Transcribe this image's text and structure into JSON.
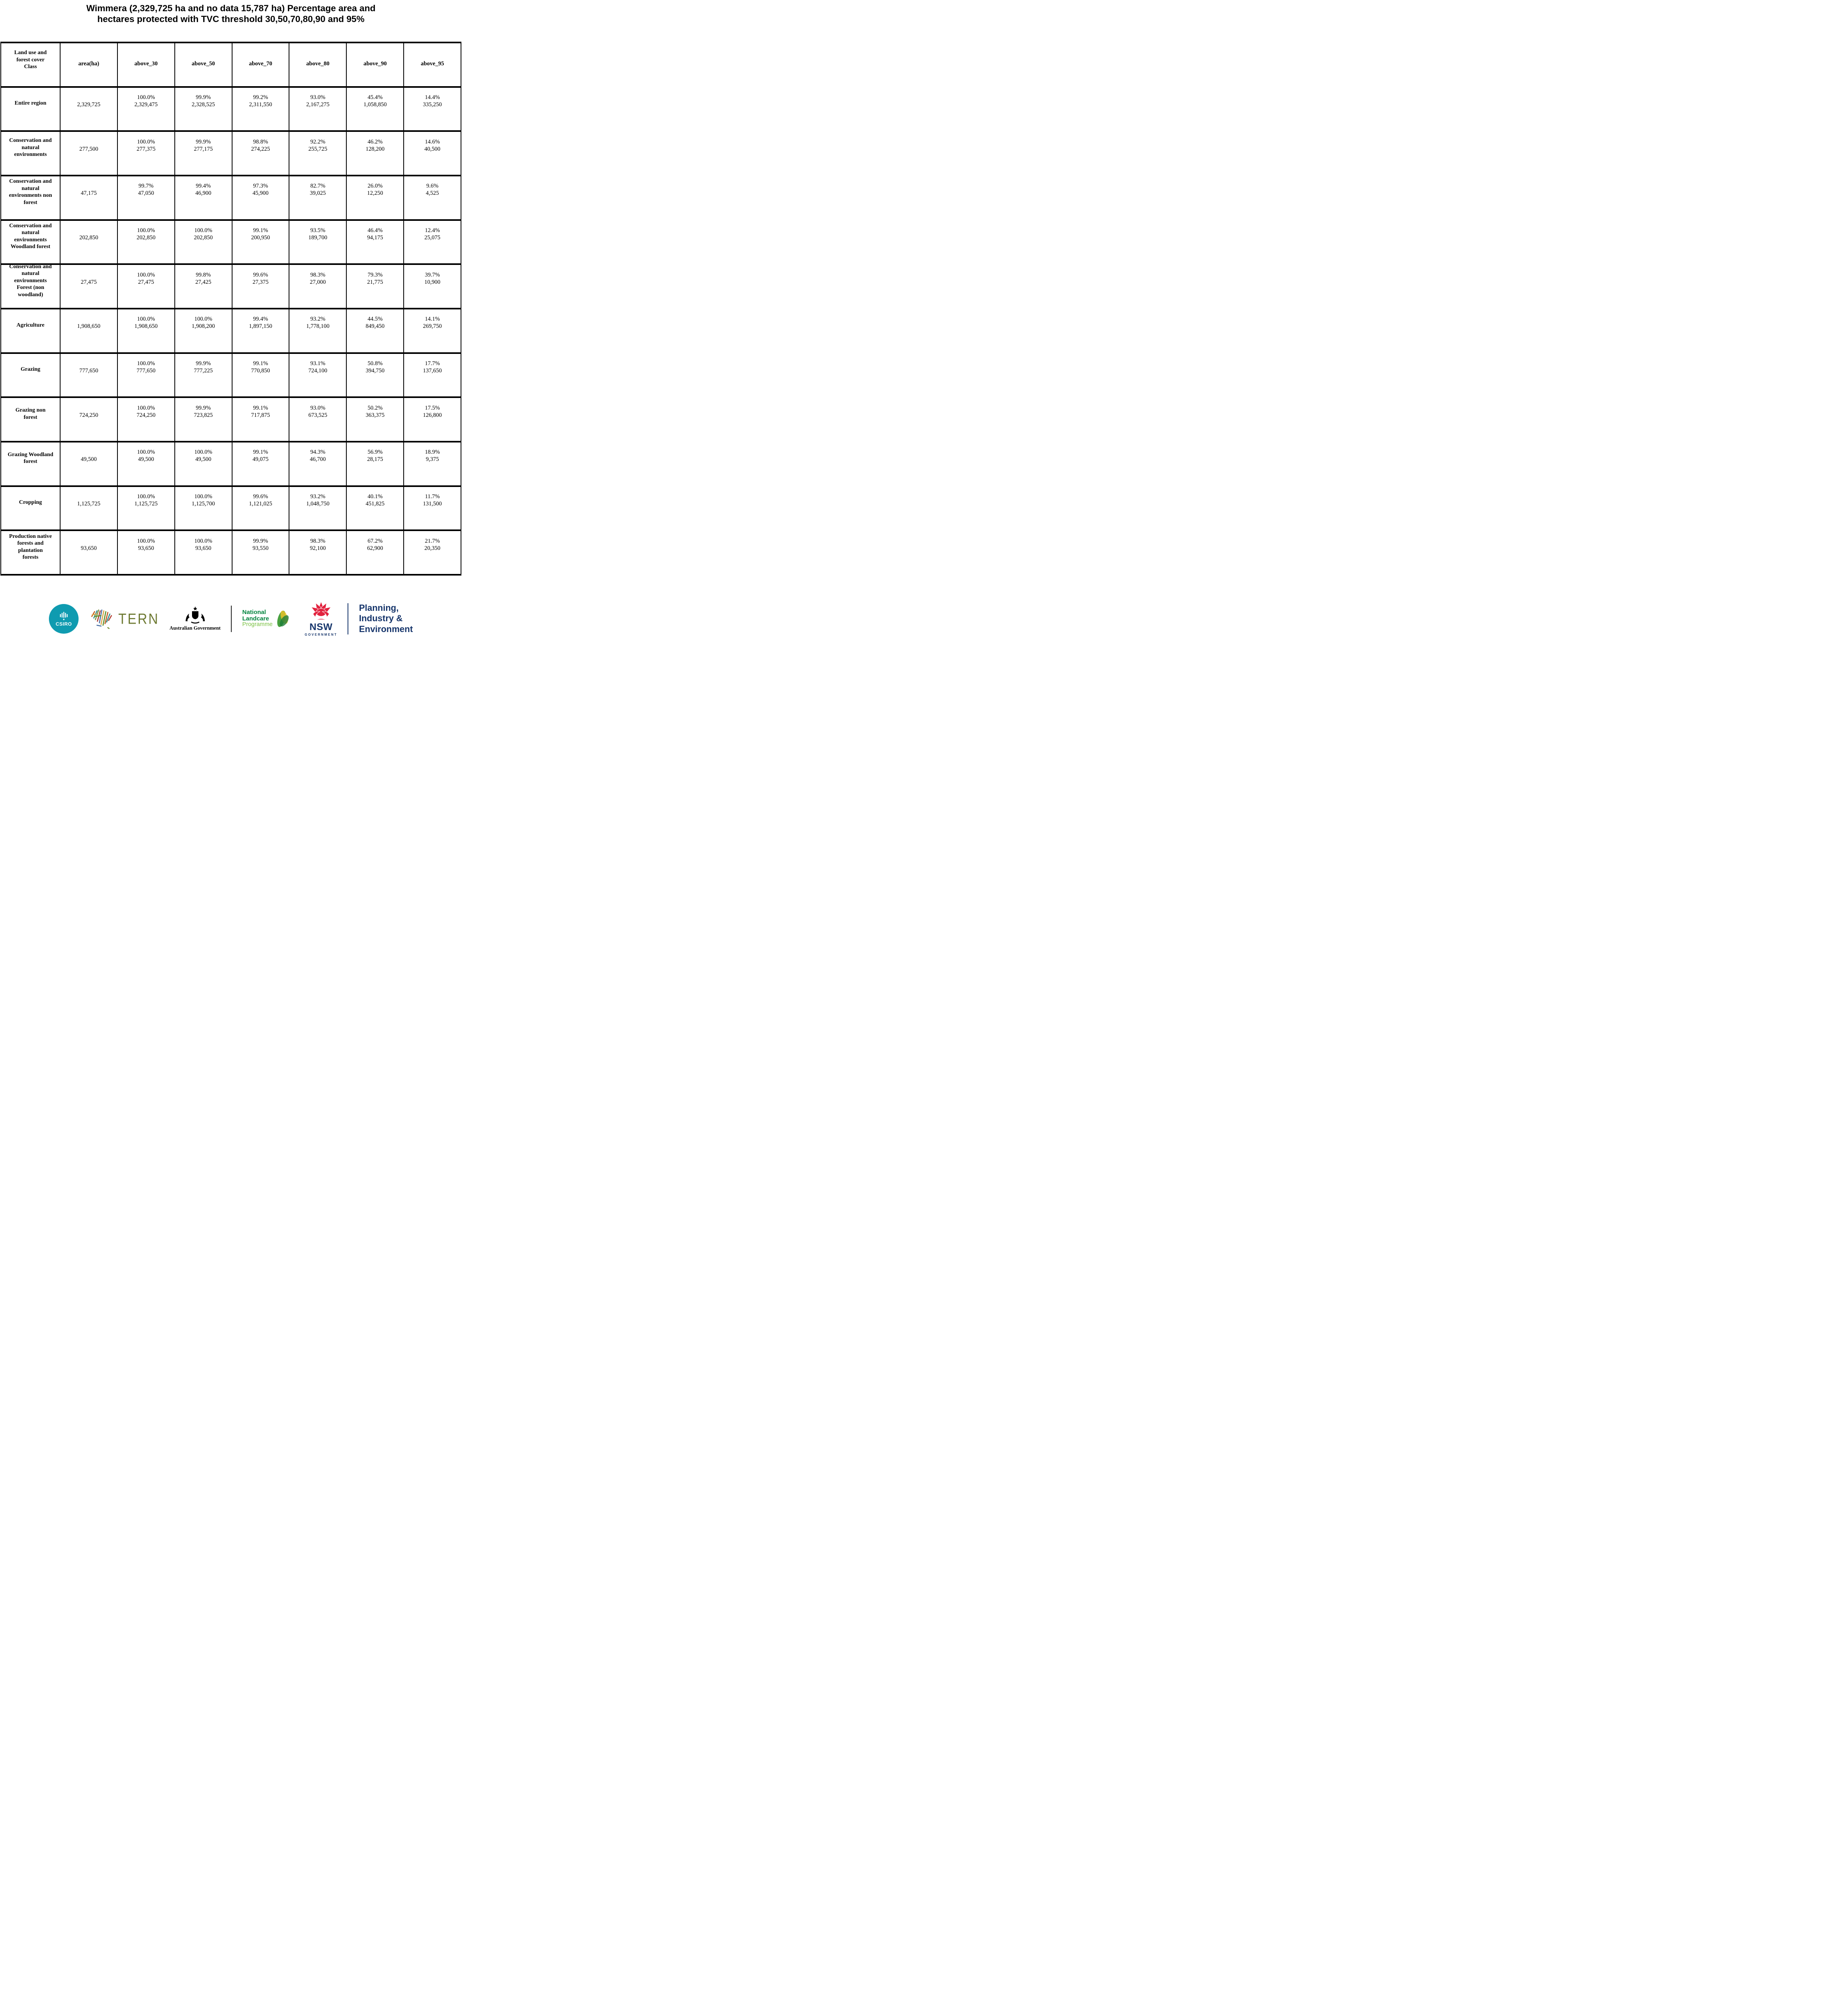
{
  "header": {
    "title_lines": [
      "Wimmera (2,329,725 ha and no data 15,787 ha) Percentage area and",
      "hectares protected with TVC threshold 30,50,70,80,90 and 95%"
    ]
  },
  "chart_data": {
    "type": "table",
    "title": "Wimmera (2,329,725 ha and no data 15,787 ha) Percentage area and hectares protected with TVC threshold 30,50,70,80,90 and 95%",
    "region": "Wimmera",
    "region_area_ha": 2329725,
    "no_data_ha": 15787,
    "tvc_thresholds": [
      30,
      50,
      70,
      80,
      90,
      95
    ],
    "columns": [
      "Land use and forest cover Class",
      "area(ha)",
      "above_30",
      "above_50",
      "above_70",
      "above_80",
      "above_90",
      "above_95"
    ],
    "first_column_lines": [
      "Land use and",
      "forest cover",
      "Class"
    ],
    "rows": [
      {
        "label": "Entire region",
        "label_lines": [
          "Entire region"
        ],
        "area_ha": 2329725,
        "thresholds": [
          [
            100.0,
            2329475
          ],
          [
            99.9,
            2328525
          ],
          [
            99.2,
            2311550
          ],
          [
            93.0,
            2167275
          ],
          [
            45.4,
            1058850
          ],
          [
            14.4,
            335250
          ]
        ]
      },
      {
        "label": "Conservation and natural environments",
        "label_lines": [
          "Conservation and",
          "natural",
          "environments"
        ],
        "area_ha": 277500,
        "thresholds": [
          [
            100.0,
            277375
          ],
          [
            99.9,
            277175
          ],
          [
            98.8,
            274225
          ],
          [
            92.2,
            255725
          ],
          [
            46.2,
            128200
          ],
          [
            14.6,
            40500
          ]
        ]
      },
      {
        "label": "Conservation and natural environments non forest",
        "label_lines": [
          "Conservation and",
          "natural",
          "environments non",
          "forest"
        ],
        "area_ha": 47175,
        "thresholds": [
          [
            99.7,
            47050
          ],
          [
            99.4,
            46900
          ],
          [
            97.3,
            45900
          ],
          [
            82.7,
            39025
          ],
          [
            26.0,
            12250
          ],
          [
            9.6,
            4525
          ]
        ]
      },
      {
        "label": "Conservation and natural environments Woodland forest",
        "label_lines": [
          "Conservation and",
          "natural",
          "environments",
          "Woodland forest"
        ],
        "area_ha": 202850,
        "thresholds": [
          [
            100.0,
            202850
          ],
          [
            100.0,
            202850
          ],
          [
            99.1,
            200950
          ],
          [
            93.5,
            189700
          ],
          [
            46.4,
            94175
          ],
          [
            12.4,
            25075
          ]
        ]
      },
      {
        "label": "Conservation and natural environments Forest (non woodland)",
        "label_lines": [
          "Conservation and",
          "natural",
          "environments",
          "Forest (non",
          "woodland)"
        ],
        "area_ha": 27475,
        "thresholds": [
          [
            100.0,
            27475
          ],
          [
            99.8,
            27425
          ],
          [
            99.6,
            27375
          ],
          [
            98.3,
            27000
          ],
          [
            79.3,
            21775
          ],
          [
            39.7,
            10900
          ]
        ]
      },
      {
        "label": "Agriculture",
        "label_lines": [
          "Agriculture"
        ],
        "area_ha": 1908650,
        "thresholds": [
          [
            100.0,
            1908650
          ],
          [
            100.0,
            1908200
          ],
          [
            99.4,
            1897150
          ],
          [
            93.2,
            1778100
          ],
          [
            44.5,
            849450
          ],
          [
            14.1,
            269750
          ]
        ]
      },
      {
        "label": "Grazing",
        "label_lines": [
          "Grazing"
        ],
        "area_ha": 777650,
        "thresholds": [
          [
            100.0,
            777650
          ],
          [
            99.9,
            777225
          ],
          [
            99.1,
            770850
          ],
          [
            93.1,
            724100
          ],
          [
            50.8,
            394750
          ],
          [
            17.7,
            137650
          ]
        ]
      },
      {
        "label": "Grazing non forest",
        "label_lines": [
          "Grazing non",
          "forest"
        ],
        "area_ha": 724250,
        "thresholds": [
          [
            100.0,
            724250
          ],
          [
            99.9,
            723825
          ],
          [
            99.1,
            717875
          ],
          [
            93.0,
            673525
          ],
          [
            50.2,
            363375
          ],
          [
            17.5,
            126800
          ]
        ]
      },
      {
        "label": "Grazing Woodland forest",
        "label_lines": [
          "Grazing Woodland",
          "forest"
        ],
        "area_ha": 49500,
        "thresholds": [
          [
            100.0,
            49500
          ],
          [
            100.0,
            49500
          ],
          [
            99.1,
            49075
          ],
          [
            94.3,
            46700
          ],
          [
            56.9,
            28175
          ],
          [
            18.9,
            9375
          ]
        ]
      },
      {
        "label": "Cropping",
        "label_lines": [
          "Cropping"
        ],
        "area_ha": 1125725,
        "thresholds": [
          [
            100.0,
            1125725
          ],
          [
            100.0,
            1125700
          ],
          [
            99.6,
            1121025
          ],
          [
            93.2,
            1048750
          ],
          [
            40.1,
            451825
          ],
          [
            11.7,
            131500
          ]
        ]
      },
      {
        "label": "Production native forests and plantation forests",
        "label_lines": [
          "Production native",
          "forests and",
          "plantation",
          "forests"
        ],
        "area_ha": 93650,
        "thresholds": [
          [
            100.0,
            93650
          ],
          [
            100.0,
            93650
          ],
          [
            99.9,
            93550
          ],
          [
            98.3,
            92100
          ],
          [
            67.2,
            62900
          ],
          [
            21.7,
            20350
          ]
        ]
      }
    ]
  },
  "footer": {
    "csiro": {
      "label": "CSIRO",
      "color": "#0f9bb0"
    },
    "tern": {
      "label": "TERN",
      "color": "#6e7a33"
    },
    "australian_government": {
      "label": "Australian Government"
    },
    "landcare": {
      "lines": [
        "National",
        "Landcare",
        "Programme"
      ],
      "green": "#00843d",
      "light_green": "#7ac143"
    },
    "nsw": {
      "label": "NSW",
      "sub": "GOVERNMENT",
      "red": "#e2223e",
      "navy": "#16356b"
    },
    "planning": {
      "lines": [
        "Planning,",
        "Industry &",
        "Environment"
      ]
    }
  }
}
